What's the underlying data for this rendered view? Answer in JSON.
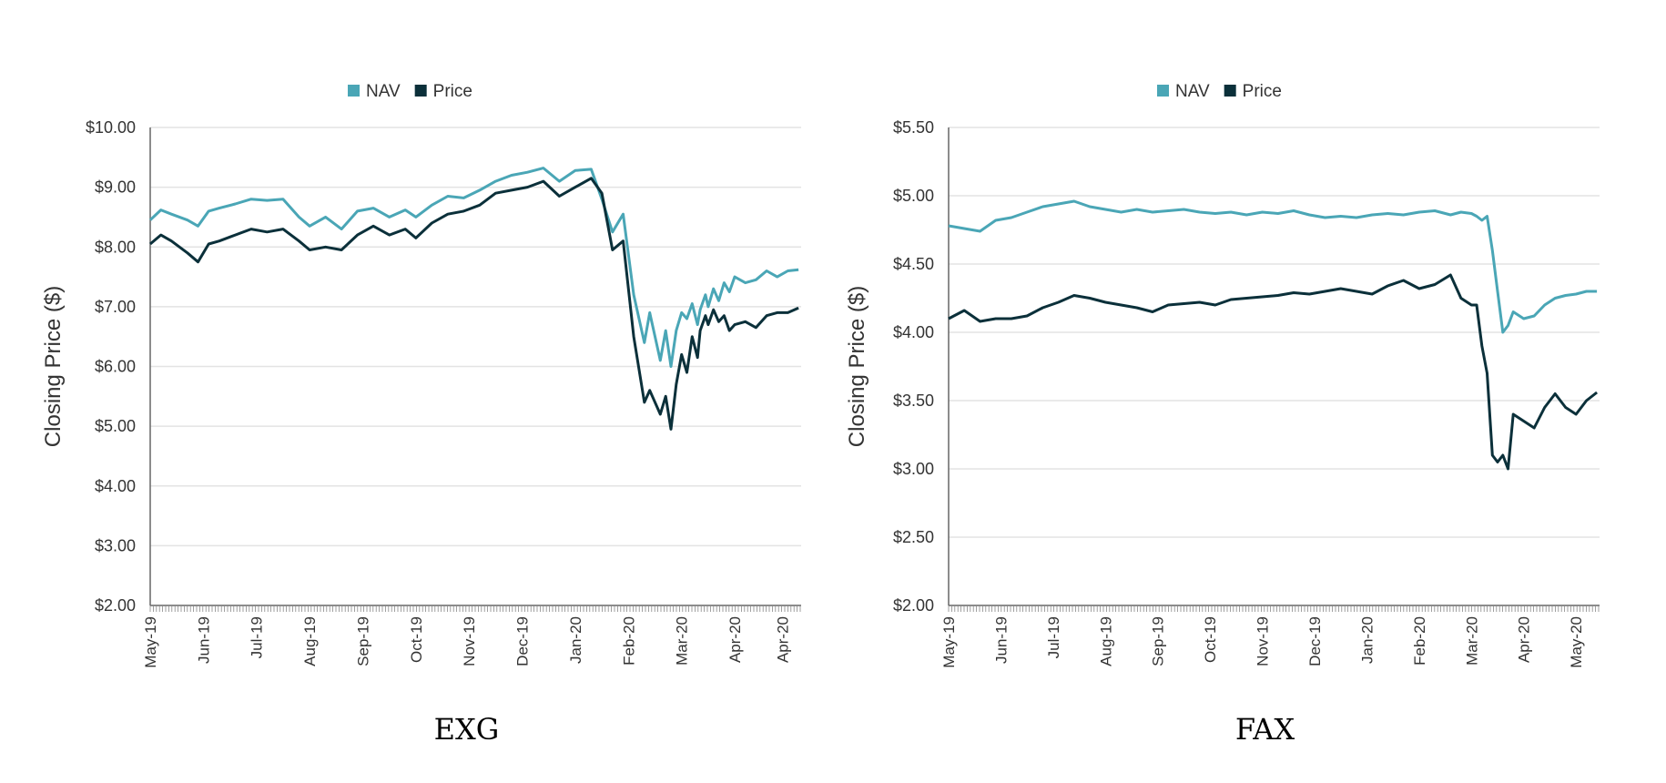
{
  "colors": {
    "nav": "#4aa6b6",
    "price": "#0b303a"
  },
  "chart_data": [
    {
      "type": "line",
      "title": "EXG",
      "ylabel": "Closing Price ($)",
      "ylim": [
        2.0,
        10.0
      ],
      "yticks": [
        "$2.00",
        "$3.00",
        "$4.00",
        "$5.00",
        "$6.00",
        "$7.00",
        "$8.00",
        "$9.00",
        "$10.00"
      ],
      "xticks": [
        "May-19",
        "Jun-19",
        "Jul-19",
        "Aug-19",
        "Sep-19",
        "Oct-19",
        "Nov-19",
        "Dec-19",
        "Jan-20",
        "Feb-20",
        "Mar-20",
        "Apr-20",
        "Apr-20"
      ],
      "legend": [
        "NAV",
        "Price"
      ],
      "legend_position": "top-center",
      "grid": true,
      "series": [
        {
          "name": "NAV",
          "x": [
            0,
            0.2,
            0.4,
            0.7,
            0.9,
            1.1,
            1.3,
            1.6,
            1.9,
            2.2,
            2.5,
            2.8,
            3.0,
            3.3,
            3.6,
            3.9,
            4.2,
            4.5,
            4.8,
            5.0,
            5.3,
            5.6,
            5.9,
            6.2,
            6.5,
            6.8,
            7.1,
            7.4,
            7.7,
            8.0,
            8.3,
            8.5,
            8.7,
            8.9,
            9.1,
            9.3,
            9.4,
            9.6,
            9.7,
            9.8,
            9.9,
            10.0,
            10.1,
            10.2,
            10.3,
            10.35,
            10.45,
            10.5,
            10.6,
            10.7,
            10.8,
            10.9,
            11.0,
            11.2,
            11.4,
            11.6,
            11.8,
            12.0,
            12.2
          ],
          "values": [
            8.45,
            8.62,
            8.55,
            8.45,
            8.35,
            8.6,
            8.65,
            8.72,
            8.8,
            8.78,
            8.8,
            8.5,
            8.35,
            8.5,
            8.3,
            8.6,
            8.65,
            8.5,
            8.62,
            8.5,
            8.7,
            8.85,
            8.82,
            8.95,
            9.1,
            9.2,
            9.25,
            9.32,
            9.1,
            9.28,
            9.3,
            8.8,
            8.25,
            8.55,
            7.2,
            6.4,
            6.9,
            6.1,
            6.6,
            6.0,
            6.6,
            6.9,
            6.8,
            7.05,
            6.7,
            6.95,
            7.2,
            7.0,
            7.3,
            7.1,
            7.4,
            7.25,
            7.5,
            7.4,
            7.45,
            7.6,
            7.5,
            7.6,
            7.62
          ]
        },
        {
          "name": "Price",
          "x": [
            0,
            0.2,
            0.4,
            0.7,
            0.9,
            1.1,
            1.3,
            1.6,
            1.9,
            2.2,
            2.5,
            2.8,
            3.0,
            3.3,
            3.6,
            3.9,
            4.2,
            4.5,
            4.8,
            5.0,
            5.3,
            5.6,
            5.9,
            6.2,
            6.5,
            6.8,
            7.1,
            7.4,
            7.7,
            8.0,
            8.3,
            8.5,
            8.7,
            8.9,
            9.1,
            9.3,
            9.4,
            9.6,
            9.7,
            9.8,
            9.9,
            10.0,
            10.1,
            10.2,
            10.3,
            10.35,
            10.45,
            10.5,
            10.6,
            10.7,
            10.8,
            10.9,
            11.0,
            11.2,
            11.4,
            11.6,
            11.8,
            12.0,
            12.2
          ],
          "values": [
            8.05,
            8.2,
            8.1,
            7.9,
            7.75,
            8.05,
            8.1,
            8.2,
            8.3,
            8.25,
            8.3,
            8.1,
            7.95,
            8.0,
            7.95,
            8.2,
            8.35,
            8.2,
            8.3,
            8.15,
            8.4,
            8.55,
            8.6,
            8.7,
            8.9,
            8.95,
            9.0,
            9.1,
            8.85,
            9.0,
            9.15,
            8.9,
            7.95,
            8.1,
            6.5,
            5.4,
            5.6,
            5.2,
            5.5,
            4.95,
            5.7,
            6.2,
            5.9,
            6.5,
            6.15,
            6.6,
            6.85,
            6.7,
            6.95,
            6.75,
            6.85,
            6.6,
            6.7,
            6.75,
            6.65,
            6.85,
            6.9,
            6.9,
            6.98
          ]
        }
      ]
    },
    {
      "type": "line",
      "title": "FAX",
      "ylabel": "Closing Price ($)",
      "ylim": [
        2.0,
        5.5
      ],
      "yticks": [
        "$2.00",
        "$2.50",
        "$3.00",
        "$3.50",
        "$4.00",
        "$4.50",
        "$5.00",
        "$5.50"
      ],
      "xticks": [
        "May-19",
        "Jun-19",
        "Jul-19",
        "Aug-19",
        "Sep-19",
        "Oct-19",
        "Nov-19",
        "Dec-19",
        "Jan-20",
        "Feb-20",
        "Mar-20",
        "Apr-20",
        "May-20"
      ],
      "legend": [
        "NAV",
        "Price"
      ],
      "legend_position": "top-center",
      "grid": true,
      "series": [
        {
          "name": "NAV",
          "x": [
            0,
            0.3,
            0.6,
            0.9,
            1.2,
            1.5,
            1.8,
            2.1,
            2.4,
            2.7,
            3.0,
            3.3,
            3.6,
            3.9,
            4.2,
            4.5,
            4.8,
            5.1,
            5.4,
            5.7,
            6.0,
            6.3,
            6.6,
            6.9,
            7.2,
            7.5,
            7.8,
            8.1,
            8.4,
            8.7,
            9.0,
            9.3,
            9.6,
            9.8,
            10.0,
            10.1,
            10.2,
            10.3,
            10.4,
            10.5,
            10.6,
            10.7,
            10.8,
            11.0,
            11.2,
            11.4,
            11.6,
            11.8,
            12.0,
            12.2,
            12.4
          ],
          "values": [
            4.78,
            4.76,
            4.74,
            4.82,
            4.84,
            4.88,
            4.92,
            4.94,
            4.96,
            4.92,
            4.9,
            4.88,
            4.9,
            4.88,
            4.89,
            4.9,
            4.88,
            4.87,
            4.88,
            4.86,
            4.88,
            4.87,
            4.89,
            4.86,
            4.84,
            4.85,
            4.84,
            4.86,
            4.87,
            4.86,
            4.88,
            4.89,
            4.86,
            4.88,
            4.87,
            4.85,
            4.82,
            4.85,
            4.6,
            4.3,
            4.0,
            4.05,
            4.15,
            4.1,
            4.12,
            4.2,
            4.25,
            4.27,
            4.28,
            4.3,
            4.3
          ]
        },
        {
          "name": "Price",
          "x": [
            0,
            0.3,
            0.6,
            0.9,
            1.2,
            1.5,
            1.8,
            2.1,
            2.4,
            2.7,
            3.0,
            3.3,
            3.6,
            3.9,
            4.2,
            4.5,
            4.8,
            5.1,
            5.4,
            5.7,
            6.0,
            6.3,
            6.6,
            6.9,
            7.2,
            7.5,
            7.8,
            8.1,
            8.4,
            8.7,
            9.0,
            9.3,
            9.6,
            9.8,
            10.0,
            10.1,
            10.2,
            10.3,
            10.4,
            10.5,
            10.6,
            10.7,
            10.8,
            11.0,
            11.2,
            11.4,
            11.6,
            11.8,
            12.0,
            12.2,
            12.4
          ],
          "values": [
            4.1,
            4.16,
            4.08,
            4.1,
            4.1,
            4.12,
            4.18,
            4.22,
            4.27,
            4.25,
            4.22,
            4.2,
            4.18,
            4.15,
            4.2,
            4.21,
            4.22,
            4.2,
            4.24,
            4.25,
            4.26,
            4.27,
            4.29,
            4.28,
            4.3,
            4.32,
            4.3,
            4.28,
            4.34,
            4.38,
            4.32,
            4.35,
            4.42,
            4.25,
            4.2,
            4.2,
            3.9,
            3.7,
            3.1,
            3.05,
            3.1,
            3.0,
            3.4,
            3.35,
            3.3,
            3.45,
            3.55,
            3.45,
            3.4,
            3.5,
            3.56
          ]
        }
      ]
    }
  ]
}
